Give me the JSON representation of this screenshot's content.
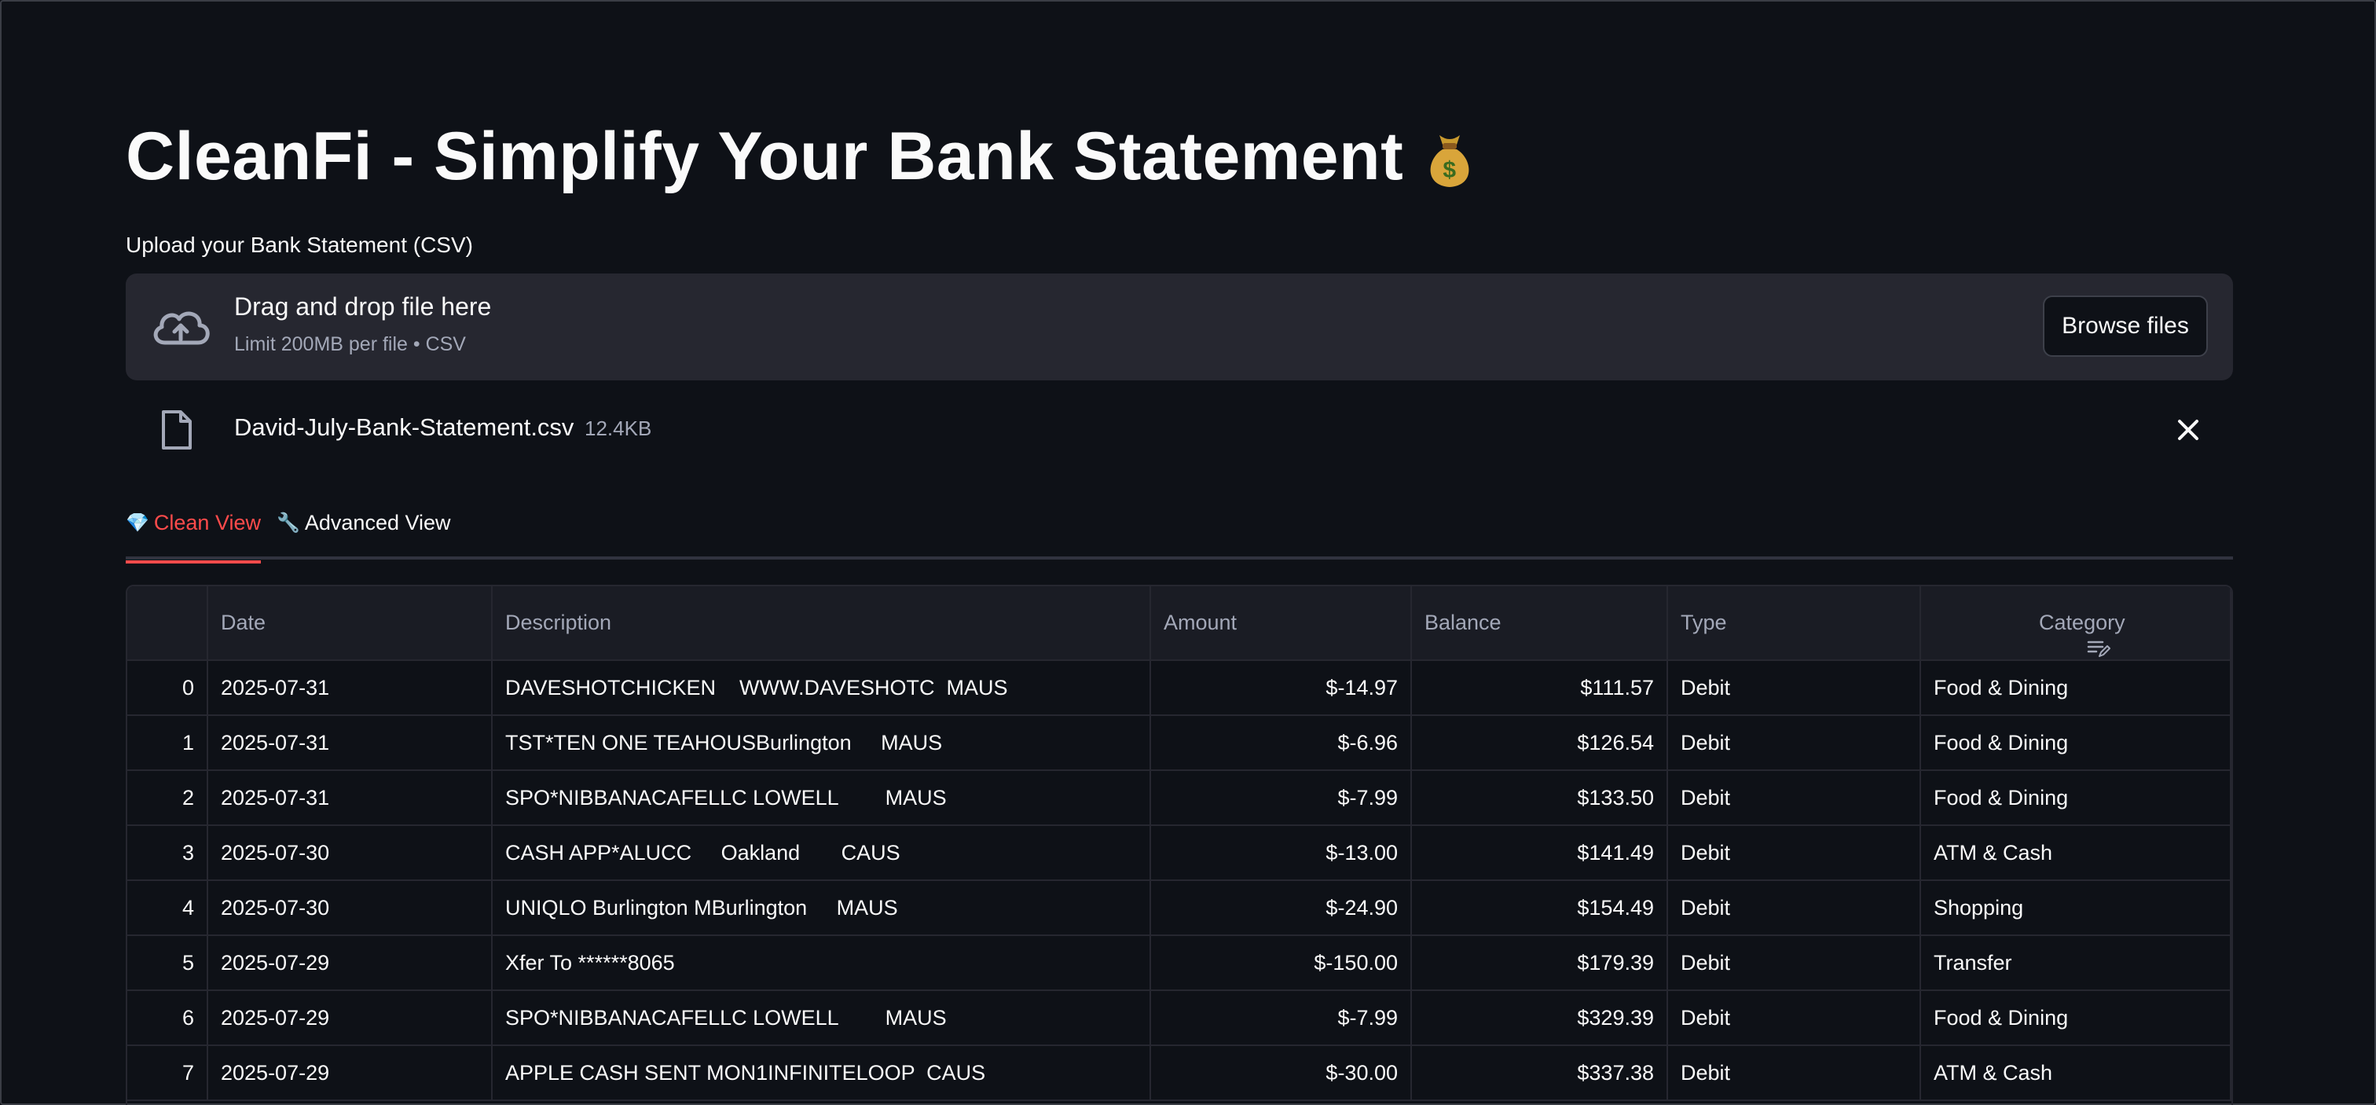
{
  "title": {
    "text": "CleanFi - Simplify Your Bank Statement",
    "emoji_icon": "money-bag-icon"
  },
  "uploader": {
    "label": "Upload your Bank Statement (CSV)",
    "drop_title": "Drag and drop file here",
    "drop_hint": "Limit 200MB per file • CSV",
    "browse_label": "Browse files",
    "icon": "cloud-upload-icon"
  },
  "uploaded_file": {
    "name": "David-July-Bank-Statement.csv",
    "size": "12.4KB",
    "icon": "file-icon",
    "remove_icon": "close-icon"
  },
  "tabs": [
    {
      "icon": "💎",
      "label": "Clean View",
      "active": true
    },
    {
      "icon": "🔧",
      "label": "Advanced View",
      "active": false
    }
  ],
  "table": {
    "columns": [
      "",
      "Date",
      "Description",
      "Amount",
      "Balance",
      "Type",
      "Category"
    ],
    "rows": [
      {
        "idx": "0",
        "date": "2025-07-31",
        "description": "DAVESHOTCHICKEN    WWW.DAVESHOTC  MAUS",
        "amount": "$-14.97",
        "balance": "$111.57",
        "type": "Debit",
        "category": "Food & Dining"
      },
      {
        "idx": "1",
        "date": "2025-07-31",
        "description": "TST*TEN ONE TEAHOUSBurlington     MAUS",
        "amount": "$-6.96",
        "balance": "$126.54",
        "type": "Debit",
        "category": "Food & Dining"
      },
      {
        "idx": "2",
        "date": "2025-07-31",
        "description": "SPO*NIBBANACAFELLC LOWELL        MAUS",
        "amount": "$-7.99",
        "balance": "$133.50",
        "type": "Debit",
        "category": "Food & Dining"
      },
      {
        "idx": "3",
        "date": "2025-07-30",
        "description": "CASH APP*ALUCC     Oakland       CAUS",
        "amount": "$-13.00",
        "balance": "$141.49",
        "type": "Debit",
        "category": "ATM & Cash"
      },
      {
        "idx": "4",
        "date": "2025-07-30",
        "description": "UNIQLO Burlington MBurlington     MAUS",
        "amount": "$-24.90",
        "balance": "$154.49",
        "type": "Debit",
        "category": "Shopping"
      },
      {
        "idx": "5",
        "date": "2025-07-29",
        "description": "Xfer To ******8065",
        "amount": "$-150.00",
        "balance": "$179.39",
        "type": "Debit",
        "category": "Transfer"
      },
      {
        "idx": "6",
        "date": "2025-07-29",
        "description": "SPO*NIBBANACAFELLC LOWELL        MAUS",
        "amount": "$-7.99",
        "balance": "$329.39",
        "type": "Debit",
        "category": "Food & Dining"
      },
      {
        "idx": "7",
        "date": "2025-07-29",
        "description": "APPLE CASH SENT MON1INFINITELOOP  CAUS",
        "amount": "$-30.00",
        "balance": "$337.38",
        "type": "Debit",
        "category": "ATM & Cash"
      }
    ]
  },
  "colors": {
    "background": "#0e1117",
    "surface": "#262730",
    "accent": "#ff4b4b",
    "text": "#fafafa",
    "muted": "#a3a8b8"
  }
}
